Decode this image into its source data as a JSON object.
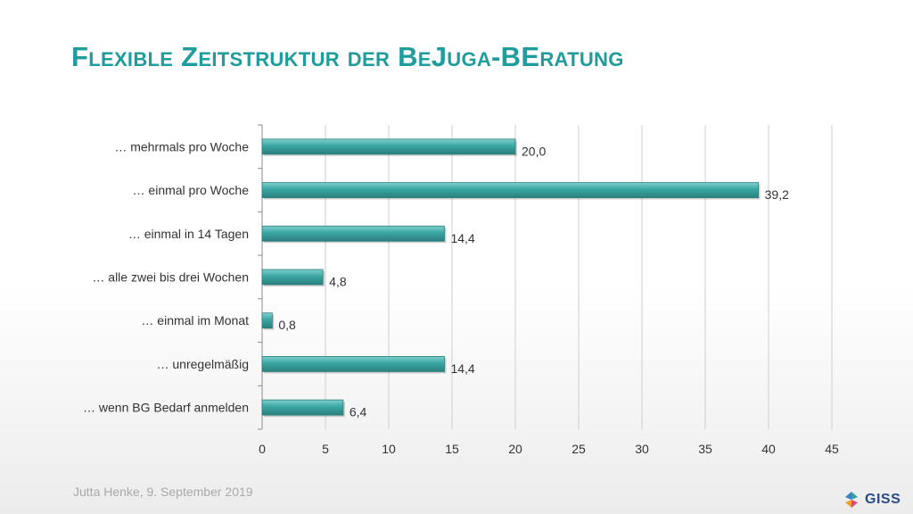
{
  "slide": {
    "title": "Flexible Zeitstruktur der BeJuga-BEratung",
    "footer": "Jutta Henke, 9. September 2019",
    "logo_text": "GISS"
  },
  "colors": {
    "title": "#1f9c9c",
    "bar": "#3aa6a3",
    "bar_light": "#7fd0cd",
    "bar_dark": "#2a7f7c",
    "grid": "#cfcfcf",
    "axis": "#8c8c8c",
    "label": "#333333"
  },
  "chart_data": {
    "type": "bar",
    "orientation": "horizontal",
    "categories": [
      "… mehrmals pro Woche",
      "… einmal pro Woche",
      "… einmal in 14 Tagen",
      "… alle zwei bis drei Wochen",
      "… einmal im Monat",
      "… unregelmäßig",
      "… wenn BG Bedarf anmelden"
    ],
    "values": [
      20.0,
      39.2,
      14.4,
      4.8,
      0.8,
      14.4,
      6.4
    ],
    "value_labels": [
      "20,0",
      "39,2",
      "14,4",
      "4,8",
      "0,8",
      "14,4",
      "6,4"
    ],
    "xlim": [
      0,
      45
    ],
    "xticks": [
      0,
      5,
      10,
      15,
      20,
      25,
      30,
      35,
      40,
      45
    ],
    "grid": true,
    "legend": "none"
  }
}
